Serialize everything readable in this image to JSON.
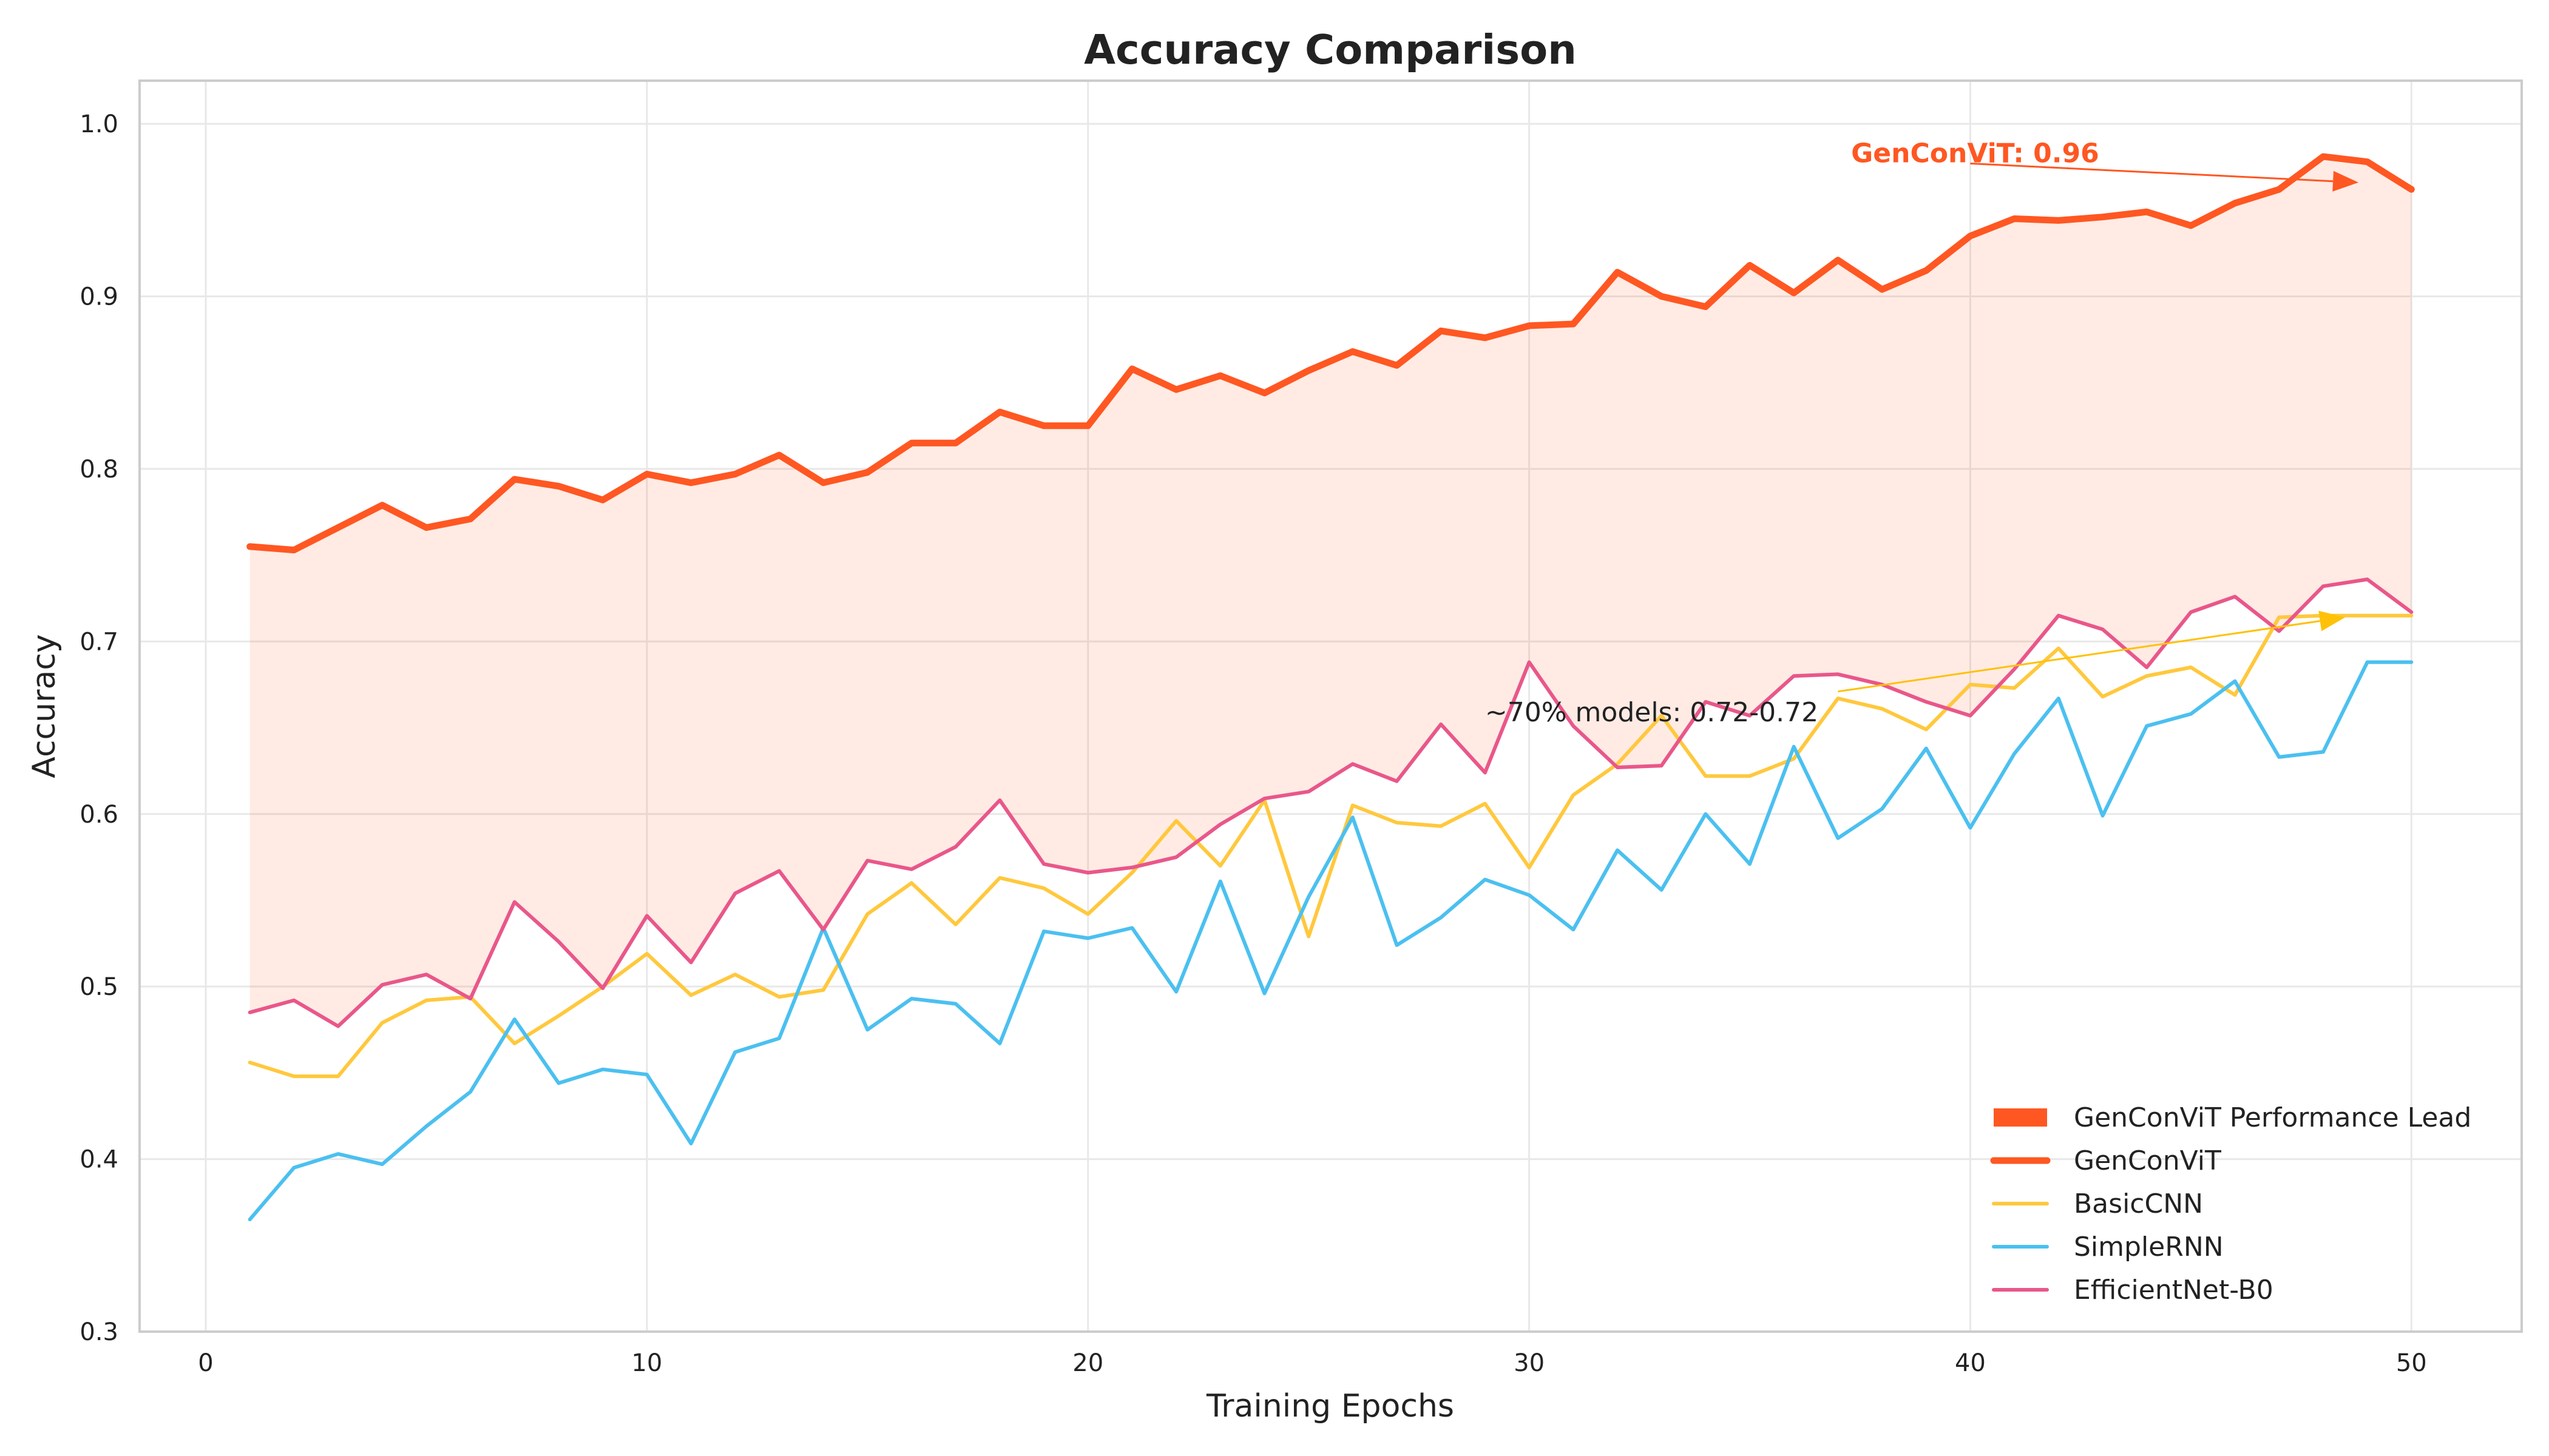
{
  "chart_data": {
    "type": "line",
    "title": "Accuracy Comparison",
    "xlabel": "Training Epochs",
    "ylabel": "Accuracy",
    "xlim": [
      -1.5,
      52.5
    ],
    "ylim": [
      0.3,
      1.025
    ],
    "grid": true,
    "xticks": [
      0,
      10,
      20,
      30,
      40,
      50
    ],
    "yticks": [
      0.3,
      0.4,
      0.5,
      0.6,
      0.7,
      0.8,
      0.9,
      1.0
    ],
    "x": [
      1,
      2,
      3,
      4,
      5,
      6,
      7,
      8,
      9,
      10,
      11,
      12,
      13,
      14,
      15,
      16,
      17,
      18,
      19,
      20,
      21,
      22,
      23,
      24,
      25,
      26,
      27,
      28,
      29,
      30,
      31,
      32,
      33,
      34,
      35,
      36,
      37,
      38,
      39,
      40,
      41,
      42,
      43,
      44,
      45,
      46,
      47,
      48,
      49,
      50
    ],
    "series": [
      {
        "name": "GenConViT",
        "color": "#FF5722",
        "values": [
          0.755,
          0.753,
          0.766,
          0.779,
          0.766,
          0.771,
          0.794,
          0.79,
          0.782,
          0.797,
          0.792,
          0.797,
          0.808,
          0.792,
          0.798,
          0.815,
          0.815,
          0.833,
          0.825,
          0.825,
          0.858,
          0.846,
          0.854,
          0.844,
          0.857,
          0.868,
          0.86,
          0.88,
          0.876,
          0.883,
          0.884,
          0.914,
          0.9,
          0.894,
          0.918,
          0.902,
          0.921,
          0.904,
          0.915,
          0.935,
          0.945,
          0.944,
          0.946,
          0.949,
          0.941,
          0.954,
          0.962,
          0.981,
          0.978,
          0.962
        ]
      },
      {
        "name": "BasicCNN",
        "color": "#FFC83D",
        "values": [
          0.456,
          0.448,
          0.448,
          0.479,
          0.492,
          0.494,
          0.467,
          0.483,
          0.5,
          0.519,
          0.495,
          0.507,
          0.494,
          0.498,
          0.542,
          0.56,
          0.536,
          0.563,
          0.557,
          0.542,
          0.566,
          0.596,
          0.57,
          0.608,
          0.529,
          0.605,
          0.595,
          0.593,
          0.606,
          0.569,
          0.611,
          0.629,
          0.657,
          0.622,
          0.622,
          0.632,
          0.667,
          0.661,
          0.649,
          0.675,
          0.673,
          0.696,
          0.668,
          0.68,
          0.685,
          0.669,
          0.714,
          0.715,
          0.715,
          0.715
        ]
      },
      {
        "name": "SimpleRNN",
        "color": "#4BC0F0",
        "values": [
          0.365,
          0.395,
          0.403,
          0.397,
          0.419,
          0.439,
          0.481,
          0.444,
          0.452,
          0.449,
          0.409,
          0.462,
          0.47,
          0.534,
          0.475,
          0.493,
          0.49,
          0.467,
          0.532,
          0.528,
          0.534,
          0.497,
          0.561,
          0.496,
          0.552,
          0.598,
          0.524,
          0.54,
          0.562,
          0.553,
          0.533,
          0.579,
          0.556,
          0.6,
          0.571,
          0.639,
          0.586,
          0.603,
          0.638,
          0.592,
          0.635,
          0.667,
          0.599,
          0.651,
          0.658,
          0.677,
          0.633,
          0.636,
          0.688,
          0.688
        ]
      },
      {
        "name": "EfficientNet-B0",
        "color": "#E9578A",
        "values": [
          0.485,
          0.492,
          0.477,
          0.501,
          0.507,
          0.493,
          0.549,
          0.526,
          0.499,
          0.541,
          0.514,
          0.554,
          0.567,
          0.533,
          0.573,
          0.568,
          0.581,
          0.608,
          0.571,
          0.566,
          0.569,
          0.575,
          0.594,
          0.609,
          0.613,
          0.629,
          0.619,
          0.652,
          0.624,
          0.688,
          0.651,
          0.627,
          0.628,
          0.665,
          0.657,
          0.68,
          0.681,
          0.675,
          0.665,
          0.657,
          0.684,
          0.715,
          0.707,
          0.685,
          0.717,
          0.726,
          0.706,
          0.732,
          0.736,
          0.717
        ]
      }
    ],
    "fill": {
      "name": "GenConViT Performance Lead",
      "color": "#FF5722",
      "between": [
        "GenConViT",
        "EfficientNet-B0"
      ]
    },
    "legend": {
      "position": "lower-right",
      "entries": [
        "GenConViT Performance Lead",
        "GenConViT",
        "BasicCNN",
        "SimpleRNN",
        "EfficientNet-B0"
      ]
    },
    "annotations": [
      {
        "text": "GenConViT: 0.96",
        "color": "#FF5722",
        "bold": true,
        "text_x": 37.3,
        "text_y": 0.983,
        "arrow_from": [
          40,
          0.977
        ],
        "arrow_to": [
          48.8,
          0.966
        ]
      },
      {
        "text": "~70% models: 0.72-0.72",
        "color": "#FFC107",
        "bold": false,
        "text_x": 29,
        "text_y": 0.659,
        "arrow_from": [
          37,
          0.671
        ],
        "arrow_to": [
          48.5,
          0.714
        ]
      }
    ]
  }
}
